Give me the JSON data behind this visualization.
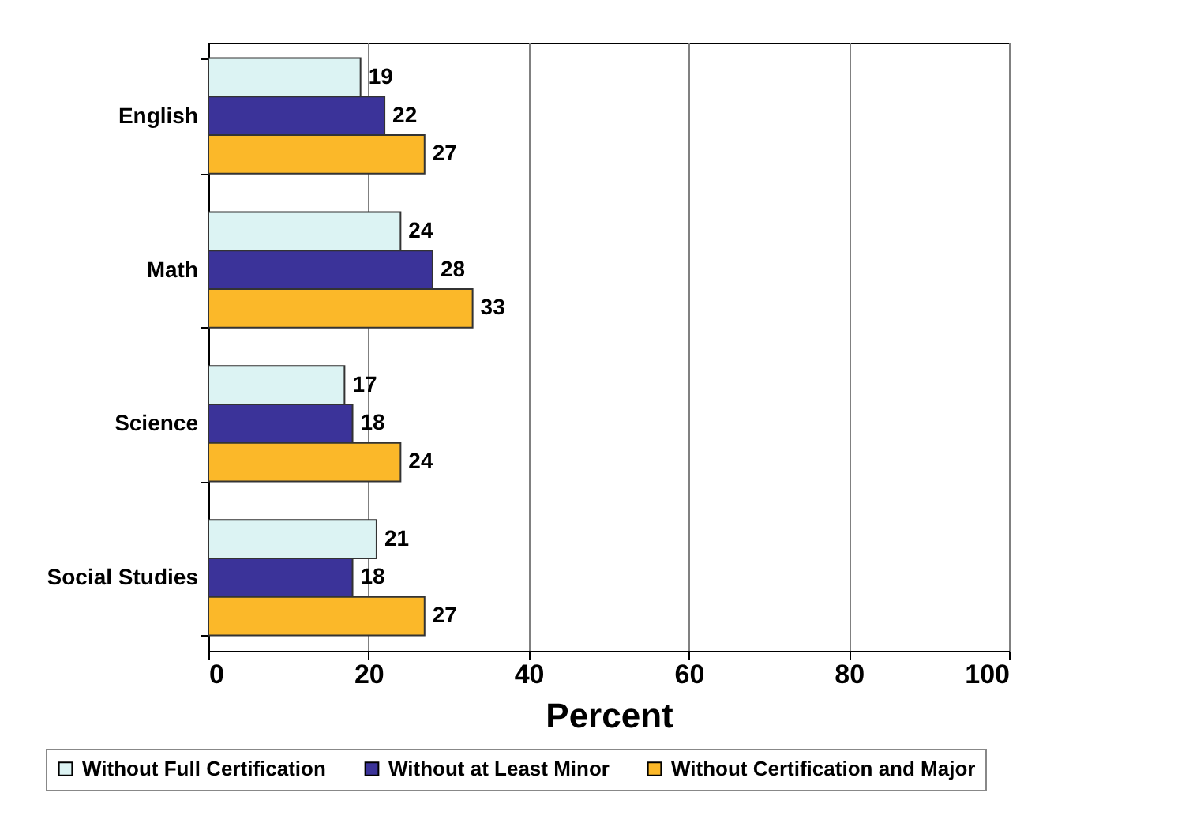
{
  "chart_data": {
    "type": "bar",
    "orientation": "horizontal",
    "categories": [
      "English",
      "Math",
      "Science",
      "Social Studies"
    ],
    "xlabel": "Percent",
    "xlim": [
      0,
      100
    ],
    "xticks": [
      0,
      20,
      40,
      60,
      80,
      100
    ],
    "grid": "x",
    "legend": "bottom",
    "data_labels": true,
    "series": [
      {
        "name": "Without Full Certification",
        "color": "#dcf3f3",
        "values": [
          19,
          24,
          17,
          21
        ]
      },
      {
        "name": "Without at Least Minor",
        "color": "#3b3399",
        "values": [
          22,
          28,
          18,
          18
        ]
      },
      {
        "name": "Without Certification and Major",
        "color": "#fbb829",
        "values": [
          27,
          33,
          24,
          27
        ]
      }
    ]
  }
}
